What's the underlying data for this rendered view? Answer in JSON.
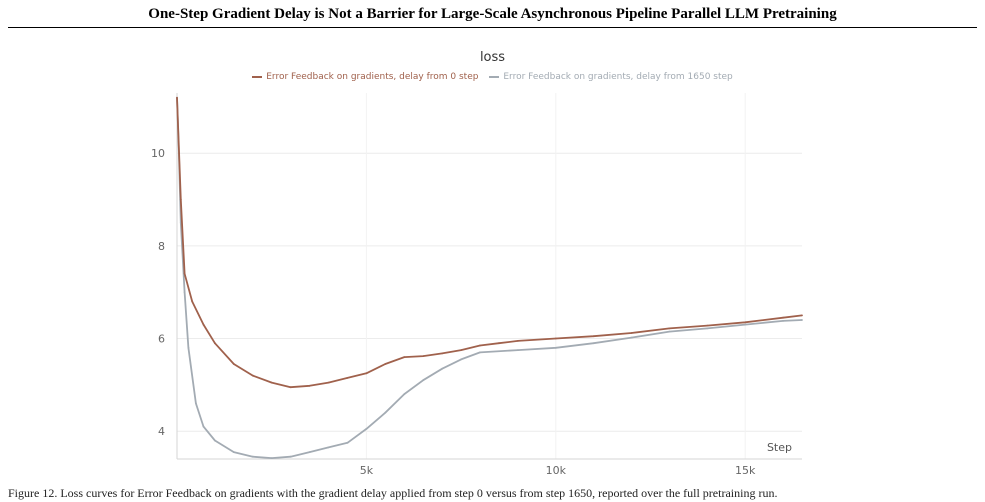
{
  "paper": {
    "title": "One-Step Gradient Delay is Not a Barrier for Large-Scale Asynchronous Pipeline Parallel LLM Pretraining"
  },
  "chart_data": {
    "type": "line",
    "title": "loss",
    "xlabel": "Step",
    "ylabel": "",
    "xlim": [
      0,
      16500
    ],
    "ylim": [
      3.4,
      11.3
    ],
    "xticks": [
      5000,
      10000,
      15000
    ],
    "xtick_labels": [
      "5k",
      "10k",
      "15k"
    ],
    "yticks": [
      4,
      6,
      8,
      10
    ],
    "grid": true,
    "legend_position": "top-center",
    "series": [
      {
        "name": "Error Feedback on gradients, delay from 0 step",
        "color": "#a0614c",
        "x": [
          0,
          100,
          200,
          400,
          700,
          1000,
          1500,
          2000,
          2500,
          3000,
          3500,
          4000,
          4500,
          5000,
          5500,
          6000,
          6500,
          7000,
          7500,
          8000,
          8500,
          9000,
          10000,
          11000,
          12000,
          13000,
          14000,
          15000,
          16000,
          16500
        ],
        "values": [
          11.2,
          9.0,
          7.4,
          6.8,
          6.3,
          5.9,
          5.45,
          5.2,
          5.05,
          4.95,
          4.98,
          5.05,
          5.15,
          5.25,
          5.45,
          5.6,
          5.62,
          5.68,
          5.75,
          5.85,
          5.9,
          5.95,
          6.0,
          6.05,
          6.12,
          6.22,
          6.28,
          6.35,
          6.45,
          6.5
        ]
      },
      {
        "name": "Error Feedback on gradients, delay from 1650 step",
        "color": "#a3abb3",
        "x": [
          0,
          50,
          100,
          200,
          300,
          500,
          700,
          1000,
          1500,
          2000,
          2500,
          3000,
          3500,
          4000,
          4500,
          5000,
          5500,
          6000,
          6500,
          7000,
          7500,
          8000,
          9000,
          10000,
          11000,
          12000,
          13000,
          14000,
          15000,
          16000,
          16500
        ],
        "values": [
          11.2,
          10.0,
          8.5,
          7.0,
          5.8,
          4.6,
          4.1,
          3.8,
          3.55,
          3.45,
          3.42,
          3.45,
          3.55,
          3.65,
          3.75,
          4.05,
          4.4,
          4.8,
          5.1,
          5.35,
          5.55,
          5.7,
          5.75,
          5.8,
          5.9,
          6.02,
          6.15,
          6.22,
          6.3,
          6.38,
          6.4
        ]
      }
    ]
  },
  "caption": {
    "text": "Figure 12. Loss curves for Error Feedback on gradients with the gradient delay applied from step 0 versus from step 1650, reported over the full pretraining run."
  }
}
